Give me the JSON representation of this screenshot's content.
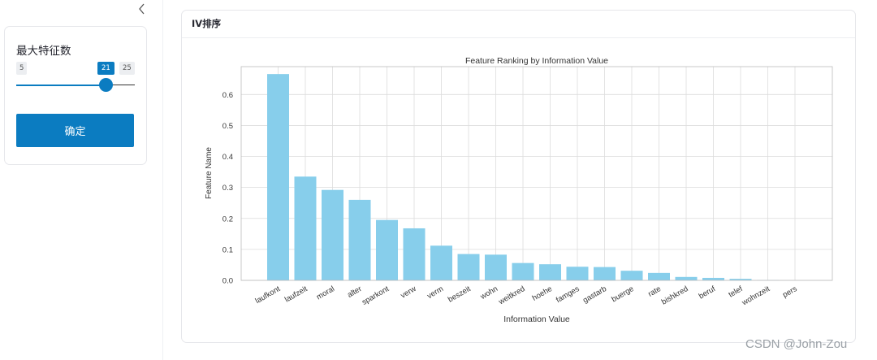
{
  "sidebar": {
    "collapse_icon": "chevron-left-icon",
    "slider": {
      "title": "最大特征数",
      "min": "5",
      "max": "25",
      "value": "21"
    },
    "confirm_label": "确定"
  },
  "panel": {
    "title": "IV排序"
  },
  "watermark": "CSDN @John-Zou",
  "colors": {
    "accent": "#0b7cc1",
    "bar": "#87ceeb"
  },
  "chart_data": {
    "type": "bar",
    "title": "Feature Ranking by Information Value",
    "xlabel": "Information Value",
    "ylabel": "Feature Name",
    "ylim": [
      0,
      0.69
    ],
    "yticks": [
      "0.0",
      "0.1",
      "0.2",
      "0.3",
      "0.4",
      "0.5",
      "0.6"
    ],
    "categories": [
      "laufkont",
      "laufzeit",
      "moral",
      "alter",
      "sparkont",
      "verw",
      "verm",
      "beszeit",
      "wohn",
      "weitkred",
      "hoehe",
      "famges",
      "gastarb",
      "buerge",
      "rate",
      "bishkred",
      "beruf",
      "telef",
      "wohnzeit",
      "pers"
    ],
    "values": [
      0.666,
      0.335,
      0.292,
      0.26,
      0.195,
      0.168,
      0.112,
      0.085,
      0.083,
      0.056,
      0.052,
      0.044,
      0.043,
      0.031,
      0.024,
      0.011,
      0.008,
      0.005,
      0.001,
      0.0
    ],
    "grid": true
  }
}
